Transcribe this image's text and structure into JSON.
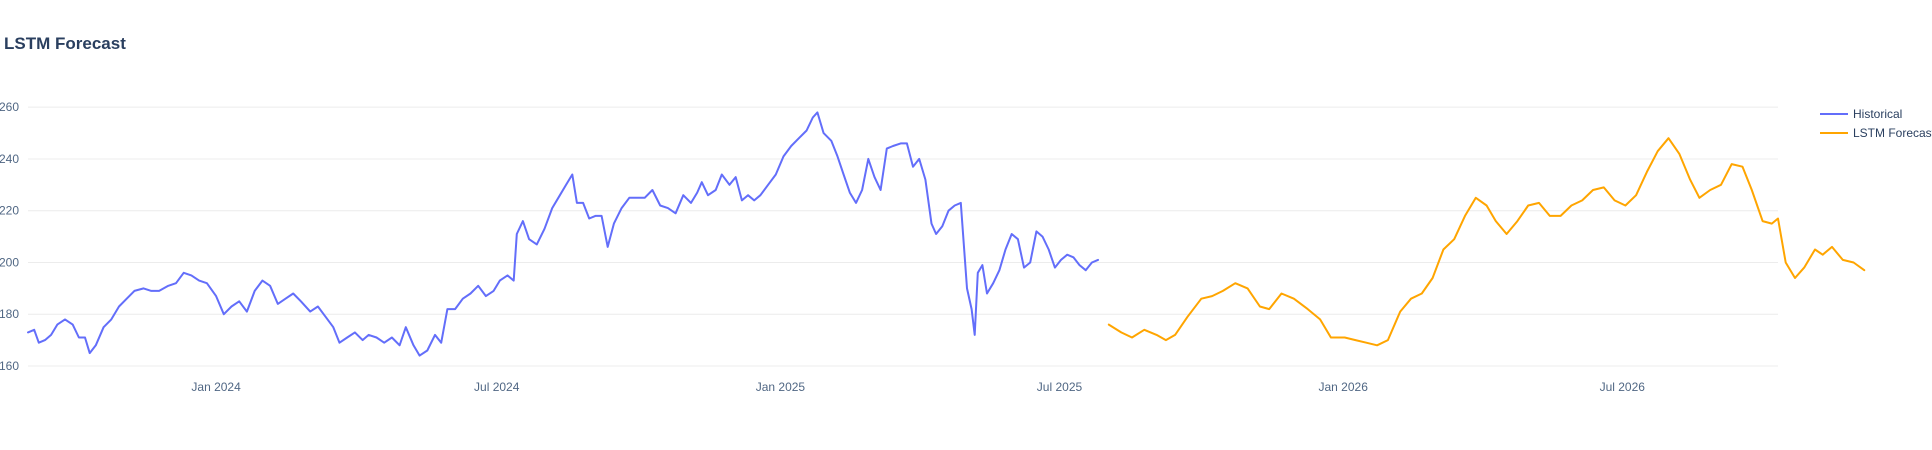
{
  "chart_data": {
    "type": "line",
    "title": "LSTM Forecast",
    "xlabel": "",
    "ylabel": "",
    "ylim": [
      160,
      262
    ],
    "xlim": [
      "2023-09-01",
      "2026-10-10"
    ],
    "grid": true,
    "legend_position": "right",
    "colors": {
      "Historical": "#636efa",
      "LSTM Forecast": "#ffa500"
    },
    "y_ticks": [
      {
        "value": 160,
        "label": "160"
      },
      {
        "value": 180,
        "label": "180"
      },
      {
        "value": 200,
        "label": "200"
      },
      {
        "value": 220,
        "label": "220"
      },
      {
        "value": 240,
        "label": "240"
      },
      {
        "value": 260,
        "label": "260"
      }
    ],
    "x_ticks": [
      {
        "value": "2024-01-01",
        "label": "Jan 2024"
      },
      {
        "value": "2024-07-01",
        "label": "Jul 2024"
      },
      {
        "value": "2025-01-01",
        "label": "Jan 2025"
      },
      {
        "value": "2025-07-01",
        "label": "Jul 2025"
      },
      {
        "value": "2026-01-01",
        "label": "Jan 2026"
      },
      {
        "value": "2026-07-01",
        "label": "Jul 2026"
      }
    ],
    "series": [
      {
        "name": "Historical",
        "points": [
          [
            "2023-09-01",
            173
          ],
          [
            "2023-09-05",
            174
          ],
          [
            "2023-09-08",
            169
          ],
          [
            "2023-09-12",
            170
          ],
          [
            "2023-09-16",
            172
          ],
          [
            "2023-09-20",
            176
          ],
          [
            "2023-09-25",
            178
          ],
          [
            "2023-09-30",
            176
          ],
          [
            "2023-10-04",
            171
          ],
          [
            "2023-10-08",
            171
          ],
          [
            "2023-10-11",
            165
          ],
          [
            "2023-10-15",
            168
          ],
          [
            "2023-10-20",
            175
          ],
          [
            "2023-10-25",
            178
          ],
          [
            "2023-10-30",
            183
          ],
          [
            "2023-11-04",
            186
          ],
          [
            "2023-11-09",
            189
          ],
          [
            "2023-11-15",
            190
          ],
          [
            "2023-11-20",
            189
          ],
          [
            "2023-11-25",
            189
          ],
          [
            "2023-12-01",
            191
          ],
          [
            "2023-12-06",
            192
          ],
          [
            "2023-12-11",
            196
          ],
          [
            "2023-12-16",
            195
          ],
          [
            "2023-12-21",
            193
          ],
          [
            "2023-12-26",
            192
          ],
          [
            "2024-01-01",
            187
          ],
          [
            "2024-01-06",
            180
          ],
          [
            "2024-01-11",
            183
          ],
          [
            "2024-01-16",
            185
          ],
          [
            "2024-01-21",
            181
          ],
          [
            "2024-01-26",
            189
          ],
          [
            "2024-01-31",
            193
          ],
          [
            "2024-02-05",
            191
          ],
          [
            "2024-02-10",
            184
          ],
          [
            "2024-02-15",
            186
          ],
          [
            "2024-02-20",
            188
          ],
          [
            "2024-02-25",
            185
          ],
          [
            "2024-03-02",
            181
          ],
          [
            "2024-03-07",
            183
          ],
          [
            "2024-03-12",
            179
          ],
          [
            "2024-03-17",
            175
          ],
          [
            "2024-03-21",
            169
          ],
          [
            "2024-03-26",
            171
          ],
          [
            "2024-03-31",
            173
          ],
          [
            "2024-04-05",
            170
          ],
          [
            "2024-04-09",
            172
          ],
          [
            "2024-04-14",
            171
          ],
          [
            "2024-04-19",
            169
          ],
          [
            "2024-04-24",
            171
          ],
          [
            "2024-04-29",
            168
          ],
          [
            "2024-05-03",
            175
          ],
          [
            "2024-05-08",
            168
          ],
          [
            "2024-05-12",
            164
          ],
          [
            "2024-05-17",
            166
          ],
          [
            "2024-05-22",
            172
          ],
          [
            "2024-05-26",
            169
          ],
          [
            "2024-05-30",
            182
          ],
          [
            "2024-06-04",
            182
          ],
          [
            "2024-06-09",
            186
          ],
          [
            "2024-06-14",
            188
          ],
          [
            "2024-06-19",
            191
          ],
          [
            "2024-06-24",
            187
          ],
          [
            "2024-06-29",
            189
          ],
          [
            "2024-07-03",
            193
          ],
          [
            "2024-07-08",
            195
          ],
          [
            "2024-07-12",
            193
          ],
          [
            "2024-07-14",
            211
          ],
          [
            "2024-07-18",
            216
          ],
          [
            "2024-07-22",
            209
          ],
          [
            "2024-07-27",
            207
          ],
          [
            "2024-08-01",
            213
          ],
          [
            "2024-08-06",
            221
          ],
          [
            "2024-08-11",
            226
          ],
          [
            "2024-08-15",
            230
          ],
          [
            "2024-08-19",
            234
          ],
          [
            "2024-08-22",
            223
          ],
          [
            "2024-08-26",
            223
          ],
          [
            "2024-08-30",
            217
          ],
          [
            "2024-09-03",
            218
          ],
          [
            "2024-09-07",
            218
          ],
          [
            "2024-09-11",
            206
          ],
          [
            "2024-09-15",
            215
          ],
          [
            "2024-09-20",
            221
          ],
          [
            "2024-09-25",
            225
          ],
          [
            "2024-09-30",
            225
          ],
          [
            "2024-10-05",
            225
          ],
          [
            "2024-10-10",
            228
          ],
          [
            "2024-10-15",
            222
          ],
          [
            "2024-10-20",
            221
          ],
          [
            "2024-10-25",
            219
          ],
          [
            "2024-10-30",
            226
          ],
          [
            "2024-11-04",
            223
          ],
          [
            "2024-11-08",
            227
          ],
          [
            "2024-11-11",
            231
          ],
          [
            "2024-11-15",
            226
          ],
          [
            "2024-11-20",
            228
          ],
          [
            "2024-11-24",
            234
          ],
          [
            "2024-11-29",
            230
          ],
          [
            "2024-12-03",
            233
          ],
          [
            "2024-12-07",
            224
          ],
          [
            "2024-12-11",
            226
          ],
          [
            "2024-12-15",
            224
          ],
          [
            "2024-12-19",
            226
          ],
          [
            "2024-12-24",
            230
          ],
          [
            "2024-12-29",
            234
          ],
          [
            "2025-01-03",
            241
          ],
          [
            "2025-01-08",
            245
          ],
          [
            "2025-01-13",
            248
          ],
          [
            "2025-01-18",
            251
          ],
          [
            "2025-01-22",
            256
          ],
          [
            "2025-01-25",
            258
          ],
          [
            "2025-01-29",
            250
          ],
          [
            "2025-02-03",
            247
          ],
          [
            "2025-02-07",
            241
          ],
          [
            "2025-02-11",
            234
          ],
          [
            "2025-02-15",
            227
          ],
          [
            "2025-02-19",
            223
          ],
          [
            "2025-02-23",
            228
          ],
          [
            "2025-02-27",
            240
          ],
          [
            "2025-03-03",
            233
          ],
          [
            "2025-03-07",
            228
          ],
          [
            "2025-03-11",
            244
          ],
          [
            "2025-03-15",
            245
          ],
          [
            "2025-03-20",
            246
          ],
          [
            "2025-03-24",
            246
          ],
          [
            "2025-03-28",
            237
          ],
          [
            "2025-04-01",
            240
          ],
          [
            "2025-04-05",
            232
          ],
          [
            "2025-04-09",
            215
          ],
          [
            "2025-04-12",
            211
          ],
          [
            "2025-04-16",
            214
          ],
          [
            "2025-04-20",
            220
          ],
          [
            "2025-04-24",
            222
          ],
          [
            "2025-04-28",
            223
          ],
          [
            "2025-05-02",
            190
          ],
          [
            "2025-05-05",
            182
          ],
          [
            "2025-05-07",
            172
          ],
          [
            "2025-05-09",
            196
          ],
          [
            "2025-05-12",
            199
          ],
          [
            "2025-05-15",
            188
          ],
          [
            "2025-05-19",
            192
          ],
          [
            "2025-05-23",
            197
          ],
          [
            "2025-05-27",
            205
          ],
          [
            "2025-05-31",
            211
          ],
          [
            "2025-06-04",
            209
          ],
          [
            "2025-06-08",
            198
          ],
          [
            "2025-06-12",
            200
          ],
          [
            "2025-06-16",
            212
          ],
          [
            "2025-06-20",
            210
          ],
          [
            "2025-06-24",
            205
          ],
          [
            "2025-06-28",
            198
          ],
          [
            "2025-07-02",
            201
          ],
          [
            "2025-07-06",
            203
          ],
          [
            "2025-07-10",
            202
          ],
          [
            "2025-07-14",
            199
          ],
          [
            "2025-07-18",
            197
          ],
          [
            "2025-07-22",
            200
          ],
          [
            "2025-07-26",
            201
          ]
        ]
      },
      {
        "name": "LSTM Forecast",
        "points": [
          [
            "2025-08-02",
            176
          ],
          [
            "2025-08-10",
            173
          ],
          [
            "2025-08-17",
            171
          ],
          [
            "2025-08-25",
            174
          ],
          [
            "2025-09-02",
            172
          ],
          [
            "2025-09-08",
            170
          ],
          [
            "2025-09-14",
            172
          ],
          [
            "2025-09-22",
            179
          ],
          [
            "2025-10-01",
            186
          ],
          [
            "2025-10-08",
            187
          ],
          [
            "2025-10-15",
            189
          ],
          [
            "2025-10-23",
            192
          ],
          [
            "2025-10-31",
            190
          ],
          [
            "2025-11-08",
            183
          ],
          [
            "2025-11-14",
            182
          ],
          [
            "2025-11-22",
            188
          ],
          [
            "2025-11-30",
            186
          ],
          [
            "2025-12-09",
            182
          ],
          [
            "2025-12-17",
            178
          ],
          [
            "2025-12-24",
            171
          ],
          [
            "2026-01-02",
            171
          ],
          [
            "2026-01-09",
            170
          ],
          [
            "2026-01-16",
            169
          ],
          [
            "2026-01-23",
            168
          ],
          [
            "2026-01-30",
            170
          ],
          [
            "2026-02-07",
            181
          ],
          [
            "2026-02-14",
            186
          ],
          [
            "2026-02-21",
            188
          ],
          [
            "2026-02-28",
            194
          ],
          [
            "2026-03-07",
            205
          ],
          [
            "2026-03-14",
            209
          ],
          [
            "2026-03-21",
            218
          ],
          [
            "2026-03-28",
            225
          ],
          [
            "2026-04-04",
            222
          ],
          [
            "2026-04-10",
            216
          ],
          [
            "2026-04-17",
            211
          ],
          [
            "2026-04-24",
            216
          ],
          [
            "2026-05-01",
            222
          ],
          [
            "2026-05-08",
            223
          ],
          [
            "2026-05-15",
            218
          ],
          [
            "2026-05-22",
            218
          ],
          [
            "2026-05-29",
            222
          ],
          [
            "2026-06-05",
            224
          ],
          [
            "2026-06-12",
            228
          ],
          [
            "2026-06-19",
            229
          ],
          [
            "2026-06-26",
            224
          ],
          [
            "2026-07-03",
            222
          ],
          [
            "2026-07-10",
            226
          ],
          [
            "2026-07-17",
            235
          ],
          [
            "2026-07-24",
            243
          ],
          [
            "2026-07-31",
            248
          ],
          [
            "2026-08-07",
            242
          ],
          [
            "2026-08-14",
            232
          ],
          [
            "2026-08-20",
            225
          ],
          [
            "2026-08-27",
            228
          ],
          [
            "2026-09-03",
            230
          ],
          [
            "2026-09-10",
            238
          ],
          [
            "2026-09-17",
            237
          ],
          [
            "2026-09-23",
            228
          ],
          [
            "2026-09-30",
            216
          ],
          [
            "2026-10-06",
            215
          ],
          [
            "2026-10-10",
            217
          ],
          [
            "2026-10-15",
            200
          ],
          [
            "2026-10-21",
            194
          ],
          [
            "2026-10-27",
            198
          ],
          [
            "2026-11-03",
            205
          ],
          [
            "2026-11-08",
            203
          ],
          [
            "2026-11-14",
            206
          ],
          [
            "2026-11-21",
            201
          ],
          [
            "2026-11-28",
            200
          ],
          [
            "2026-12-05",
            197
          ]
        ]
      }
    ]
  }
}
